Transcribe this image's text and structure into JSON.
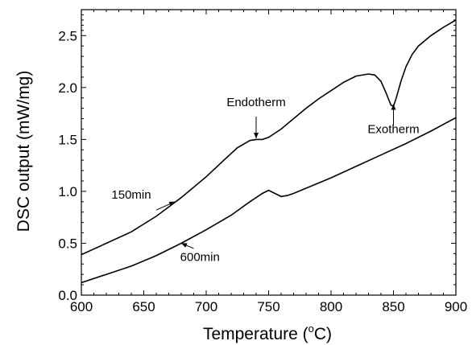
{
  "chart_data": {
    "type": "line",
    "xlabel": "Temperature (",
    "xlabel_unit_sup": "o",
    "xlabel_unit_tail": "C)",
    "ylabel": "DSC output (mW/mg)",
    "xlim": [
      600,
      900
    ],
    "ylim": [
      0.0,
      2.75
    ],
    "x_ticks": [
      600,
      650,
      700,
      750,
      800,
      850,
      900
    ],
    "x_tick_labels": [
      "600",
      "650",
      "700",
      "750",
      "800",
      "850",
      "900"
    ],
    "y_ticks": [
      0.0,
      0.5,
      1.0,
      1.5,
      2.0,
      2.5
    ],
    "y_tick_labels": [
      "0.0",
      "0.5",
      "1.0",
      "1.5",
      "2.0",
      "2.5"
    ],
    "grid": false,
    "series": [
      {
        "name": "150min",
        "x": [
          600,
          620,
          640,
          660,
          680,
          700,
          715,
          725,
          735,
          740,
          745,
          750,
          760,
          770,
          780,
          790,
          800,
          810,
          820,
          830,
          835,
          840,
          844,
          848,
          850,
          852,
          856,
          860,
          865,
          870,
          880,
          890,
          900
        ],
        "y": [
          0.39,
          0.5,
          0.61,
          0.76,
          0.94,
          1.14,
          1.31,
          1.42,
          1.49,
          1.5,
          1.5,
          1.52,
          1.6,
          1.7,
          1.8,
          1.89,
          1.97,
          2.05,
          2.11,
          2.13,
          2.12,
          2.06,
          1.95,
          1.83,
          1.82,
          1.89,
          2.06,
          2.2,
          2.32,
          2.4,
          2.5,
          2.58,
          2.65
        ]
      },
      {
        "name": "600min",
        "x": [
          600,
          620,
          640,
          660,
          680,
          700,
          720,
          735,
          745,
          750,
          755,
          760,
          765,
          770,
          780,
          800,
          820,
          840,
          860,
          880,
          900
        ],
        "y": [
          0.12,
          0.2,
          0.28,
          0.38,
          0.5,
          0.63,
          0.77,
          0.9,
          0.98,
          1.01,
          0.98,
          0.95,
          0.96,
          0.98,
          1.03,
          1.13,
          1.24,
          1.35,
          1.46,
          1.58,
          1.71
        ]
      }
    ],
    "annotations": [
      {
        "text": "Endotherm",
        "text_x": 740,
        "text_y": 1.82,
        "arrow_from": [
          740,
          1.72
        ],
        "arrow_to": [
          740,
          1.51
        ]
      },
      {
        "text": "Exotherm",
        "text_x": 850,
        "text_y": 1.56,
        "arrow_from": [
          850,
          1.64
        ],
        "arrow_to": [
          850,
          1.84
        ]
      },
      {
        "text": "150min",
        "text_x": 640,
        "text_y": 0.93,
        "arrow_from": [
          660,
          0.82
        ],
        "arrow_to": [
          675,
          0.9
        ]
      },
      {
        "text": "600min",
        "text_x": 695,
        "text_y": 0.33,
        "arrow_from": [
          690,
          0.45
        ],
        "arrow_to": [
          680,
          0.5
        ]
      }
    ]
  }
}
